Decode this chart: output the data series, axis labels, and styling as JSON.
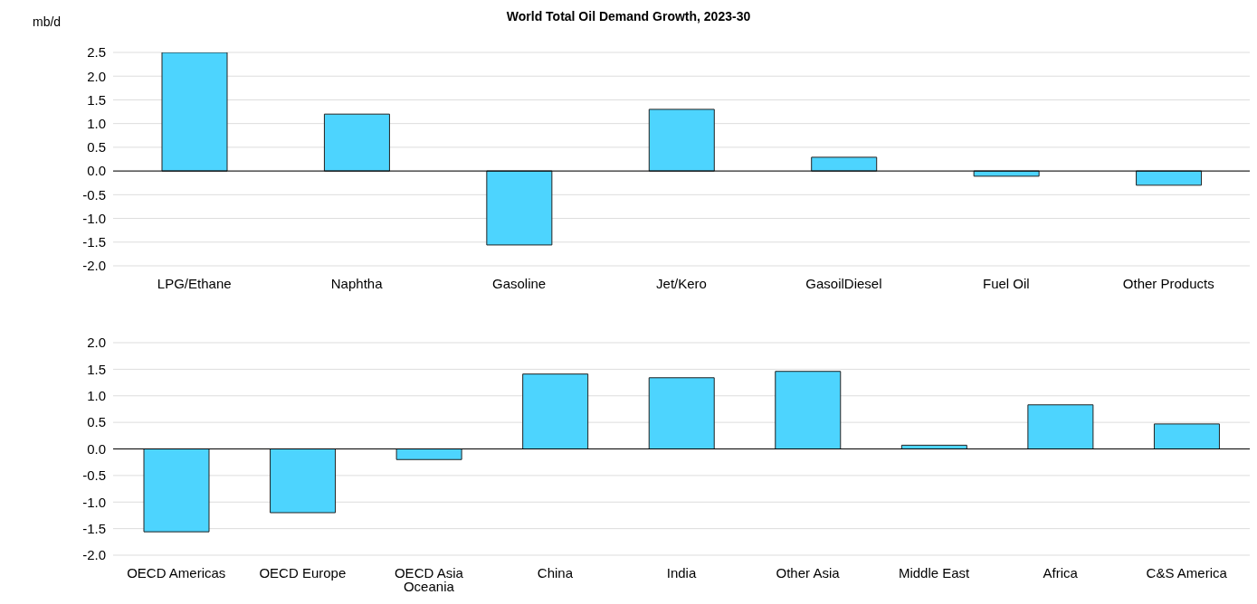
{
  "chart_data": [
    {
      "type": "bar",
      "title": "World Total Oil Demand Growth, 2023-30",
      "ylabel": "mb/d",
      "categories": [
        "LPG/Ethane",
        "Naphtha",
        "Gasoline",
        "Jet/Kero",
        "GasoilDiesel",
        "Fuel Oil",
        "Other Products"
      ],
      "values": [
        2.5,
        1.2,
        -1.56,
        1.3,
        0.29,
        -0.11,
        -0.3
      ],
      "color": "#4dd4fe",
      "ylim": [
        -2.0,
        2.5
      ],
      "yticks": [
        {
          "value": -2,
          "label": "-2.0"
        },
        {
          "value": -1.5,
          "label": "-1.5"
        },
        {
          "value": -1,
          "label": "-1.0"
        },
        {
          "value": -0.5,
          "label": "-0.5"
        },
        {
          "value": 0,
          "label": "0.0"
        },
        {
          "value": 0.5,
          "label": "0.5"
        },
        {
          "value": 1,
          "label": "1.0"
        },
        {
          "value": 1.5,
          "label": "1.5"
        },
        {
          "value": 2,
          "label": "2.0"
        },
        {
          "value": 2.5,
          "label": "2.5"
        }
      ],
      "grid": "y",
      "legend": false
    },
    {
      "type": "bar",
      "categories": [
        "OECD Americas",
        "OECD Europe",
        "OECD Asia Oceania",
        "China",
        "India",
        "Other Asia",
        "Middle East",
        "Africa",
        "C&S America"
      ],
      "values": [
        -1.56,
        -1.2,
        -0.2,
        1.41,
        1.34,
        1.46,
        0.07,
        0.83,
        0.47
      ],
      "color": "#4dd4fe",
      "ylim": [
        -2.0,
        2.0
      ],
      "yticks": [
        {
          "value": -2,
          "label": "-2.0"
        },
        {
          "value": -1.5,
          "label": "-1.5"
        },
        {
          "value": -1,
          "label": "-1.0"
        },
        {
          "value": -0.5,
          "label": "-0.5"
        },
        {
          "value": 0,
          "label": "0.0"
        },
        {
          "value": 0.5,
          "label": "0.5"
        },
        {
          "value": 1,
          "label": "1.0"
        },
        {
          "value": 1.5,
          "label": "1.5"
        },
        {
          "value": 2,
          "label": "2.0"
        }
      ],
      "grid": "y",
      "legend": false
    }
  ]
}
